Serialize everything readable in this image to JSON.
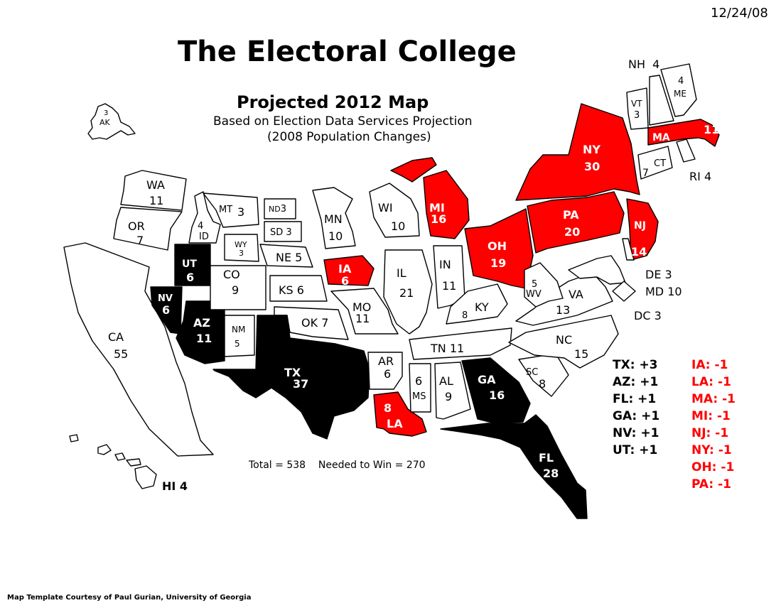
{
  "date": "12/24/08",
  "title": "The Electoral College",
  "subtitle": "Projected 2012 Map",
  "subtitle_line2": "Based on Election Data Services Projection",
  "subtitle_line3": "(2008 Population Changes)",
  "total_label": "Total = 538",
  "needed_label": "Needed to Win = 270",
  "credit": "Map Template Courtesy of Paul Gurian, University of Georgia",
  "colors": {
    "gain": "#000000",
    "loss": "#ff0000",
    "unchanged": "#ffffff",
    "outline": "#000000"
  },
  "gains": [
    {
      "label": "TX:",
      "delta": "+3"
    },
    {
      "label": "AZ:",
      "delta": "+1"
    },
    {
      "label": "FL:",
      "delta": "+1"
    },
    {
      "label": "GA:",
      "delta": "+1"
    },
    {
      "label": "NV:",
      "delta": "+1"
    },
    {
      "label": "UT:",
      "delta": "+1"
    }
  ],
  "losses": [
    {
      "label": "IA:",
      "delta": "-1"
    },
    {
      "label": "LA:",
      "delta": "-1"
    },
    {
      "label": "MA:",
      "delta": "-1"
    },
    {
      "label": "MI:",
      "delta": "-1"
    },
    {
      "label": "NJ:",
      "delta": "-1"
    },
    {
      "label": "NY:",
      "delta": "-1"
    },
    {
      "label": "OH:",
      "delta": "-1"
    },
    {
      "label": "PA:",
      "delta": "-1"
    }
  ],
  "states": {
    "AK": {
      "abbr": "AK",
      "votes": "3",
      "status": "unchanged"
    },
    "HI": {
      "abbr": "HI",
      "votes": "4",
      "status": "unchanged"
    },
    "WA": {
      "abbr": "WA",
      "votes": "11",
      "status": "unchanged"
    },
    "OR": {
      "abbr": "OR",
      "votes": "7",
      "status": "unchanged"
    },
    "CA": {
      "abbr": "CA",
      "votes": "55",
      "status": "unchanged"
    },
    "ID": {
      "abbr": "ID",
      "votes": "4",
      "status": "unchanged"
    },
    "NV": {
      "abbr": "NV",
      "votes": "6",
      "status": "gain"
    },
    "UT": {
      "abbr": "UT",
      "votes": "6",
      "status": "gain"
    },
    "AZ": {
      "abbr": "AZ",
      "votes": "11",
      "status": "gain"
    },
    "MT": {
      "abbr": "MT",
      "votes": "3",
      "status": "unchanged"
    },
    "WY": {
      "abbr": "WY",
      "votes": "3",
      "status": "unchanged"
    },
    "CO": {
      "abbr": "CO",
      "votes": "9",
      "status": "unchanged"
    },
    "NM": {
      "abbr": "NM",
      "votes": "5",
      "status": "unchanged"
    },
    "ND": {
      "abbr": "ND",
      "votes": "3",
      "status": "unchanged"
    },
    "SD": {
      "abbr": "SD",
      "votes": "3",
      "status": "unchanged"
    },
    "NE": {
      "abbr": "NE",
      "votes": "5",
      "status": "unchanged"
    },
    "KS": {
      "abbr": "KS",
      "votes": "6",
      "status": "unchanged"
    },
    "OK": {
      "abbr": "OK",
      "votes": "7",
      "status": "unchanged"
    },
    "TX": {
      "abbr": "TX",
      "votes": "37",
      "status": "gain"
    },
    "MN": {
      "abbr": "MN",
      "votes": "10",
      "status": "unchanged"
    },
    "IA": {
      "abbr": "IA",
      "votes": "6",
      "status": "loss"
    },
    "MO": {
      "abbr": "MO",
      "votes": "11",
      "status": "unchanged"
    },
    "AR": {
      "abbr": "AR",
      "votes": "6",
      "status": "unchanged"
    },
    "LA": {
      "abbr": "LA",
      "votes": "8",
      "status": "loss"
    },
    "WI": {
      "abbr": "WI",
      "votes": "10",
      "status": "unchanged"
    },
    "IL": {
      "abbr": "IL",
      "votes": "21",
      "status": "unchanged"
    },
    "MI": {
      "abbr": "MI",
      "votes": "16",
      "status": "loss"
    },
    "IN": {
      "abbr": "IN",
      "votes": "11",
      "status": "unchanged"
    },
    "OH": {
      "abbr": "OH",
      "votes": "19",
      "status": "loss"
    },
    "KY": {
      "abbr": "KY",
      "votes": "8",
      "status": "unchanged"
    },
    "TN": {
      "abbr": "TN",
      "votes": "11",
      "status": "unchanged"
    },
    "MS": {
      "abbr": "MS",
      "votes": "6",
      "status": "unchanged"
    },
    "AL": {
      "abbr": "AL",
      "votes": "9",
      "status": "unchanged"
    },
    "GA": {
      "abbr": "GA",
      "votes": "16",
      "status": "gain"
    },
    "FL": {
      "abbr": "FL",
      "votes": "28",
      "status": "gain"
    },
    "SC": {
      "abbr": "SC",
      "votes": "8",
      "status": "unchanged"
    },
    "NC": {
      "abbr": "NC",
      "votes": "15",
      "status": "unchanged"
    },
    "VA": {
      "abbr": "VA",
      "votes": "13",
      "status": "unchanged"
    },
    "WV": {
      "abbr": "WV",
      "votes": "5",
      "status": "unchanged"
    },
    "PA": {
      "abbr": "PA",
      "votes": "20",
      "status": "loss"
    },
    "NY": {
      "abbr": "NY",
      "votes": "30",
      "status": "loss"
    },
    "NJ": {
      "abbr": "NJ",
      "votes": "14",
      "status": "loss"
    },
    "DE": {
      "abbr": "DE",
      "votes": "3",
      "status": "unchanged"
    },
    "MD": {
      "abbr": "MD",
      "votes": "10",
      "status": "unchanged"
    },
    "DC": {
      "abbr": "DC",
      "votes": "3",
      "status": "unchanged"
    },
    "CT": {
      "abbr": "CT",
      "votes": "7",
      "status": "unchanged"
    },
    "RI": {
      "abbr": "RI",
      "votes": "4",
      "status": "unchanged"
    },
    "MA": {
      "abbr": "MA",
      "votes": "11",
      "status": "loss"
    },
    "VT": {
      "abbr": "VT",
      "votes": "3",
      "status": "unchanged"
    },
    "NH": {
      "abbr": "NH",
      "votes": "4",
      "status": "unchanged"
    },
    "ME": {
      "abbr": "ME",
      "votes": "4",
      "status": "unchanged"
    }
  }
}
